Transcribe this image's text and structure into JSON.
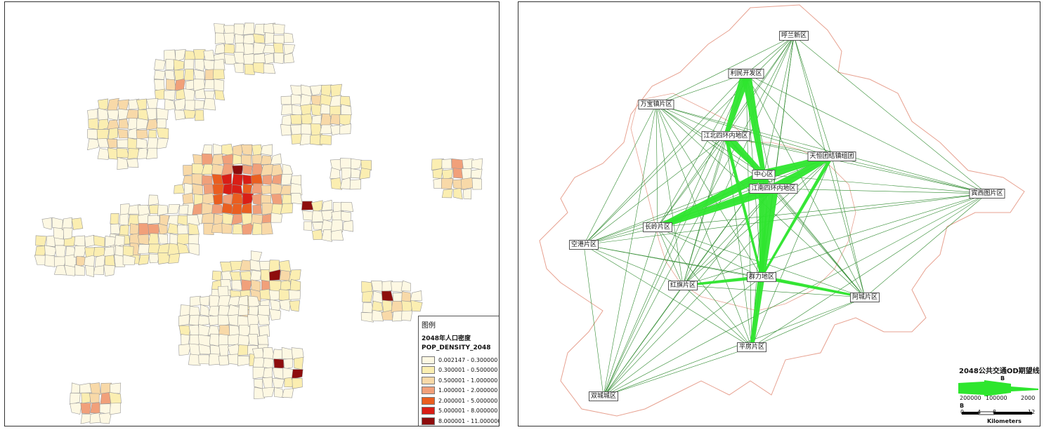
{
  "left_map": {
    "legend": {
      "title": "图例",
      "subtitle": "2048年人口密度",
      "field": "POP_DENSITY_2048",
      "classes": [
        {
          "label": "0.002147 - 0.300000",
          "color": "#fdf8e3"
        },
        {
          "label": "0.300001 - 0.500000",
          "color": "#fbeeb1"
        },
        {
          "label": "0.500001 - 1.000000",
          "color": "#f8d9a8"
        },
        {
          "label": "1.000001 - 2.000000",
          "color": "#f1a07a"
        },
        {
          "label": "2.000001 - 5.000000",
          "color": "#ea5e20"
        },
        {
          "label": "5.000001 - 8.000000",
          "color": "#d91e16"
        },
        {
          "label": "8.000001 - 11.000000",
          "color": "#8e0d0d"
        }
      ]
    }
  },
  "right_map": {
    "zones": [
      {
        "id": "hulan",
        "label": "呼兰新区"
      },
      {
        "id": "limin",
        "label": "利民开发区"
      },
      {
        "id": "wanbao",
        "label": "万宝镇片区"
      },
      {
        "id": "jiangbei",
        "label": "江北四环内地区"
      },
      {
        "id": "tianheng",
        "label": "天恒团结镇组团"
      },
      {
        "id": "zhongxin",
        "label": "中心区"
      },
      {
        "id": "jiangnan",
        "label": "江南四环内地区"
      },
      {
        "id": "binxi",
        "label": "宾西图片区"
      },
      {
        "id": "changling",
        "label": "长岭片区"
      },
      {
        "id": "konggang",
        "label": "空港片区"
      },
      {
        "id": "qunli",
        "label": "群力地区"
      },
      {
        "id": "hongqi",
        "label": "红旗片区"
      },
      {
        "id": "acheng",
        "label": "阿城片区"
      },
      {
        "id": "pingfang",
        "label": "平房片区"
      },
      {
        "id": "shuangcheng",
        "label": "双城城区"
      }
    ],
    "flows": [
      {
        "from": "limin",
        "to": "jiangbei",
        "weight": "major"
      },
      {
        "from": "limin",
        "to": "zhongxin",
        "weight": "major"
      },
      {
        "from": "jiangbei",
        "to": "zhongxin",
        "weight": "major"
      },
      {
        "from": "zhongxin",
        "to": "tianheng",
        "weight": "major"
      },
      {
        "from": "jiangnan",
        "to": "tianheng",
        "weight": "major"
      },
      {
        "from": "jiangnan",
        "to": "changling",
        "weight": "major"
      },
      {
        "from": "zhongxin",
        "to": "changling",
        "weight": "major"
      },
      {
        "from": "zhongxin",
        "to": "qunli",
        "weight": "major"
      },
      {
        "from": "jiangnan",
        "to": "pingfang",
        "weight": "major"
      },
      {
        "from": "tianheng",
        "to": "qunli",
        "weight": "medium"
      },
      {
        "from": "jiangbei",
        "to": "qunli",
        "weight": "medium"
      },
      {
        "from": "qunli",
        "to": "acheng",
        "weight": "medium"
      },
      {
        "from": "qunli",
        "to": "hongqi",
        "weight": "medium"
      }
    ],
    "legend": {
      "title": "2048公共交通OD期望线",
      "field_label": "B",
      "field_label_2": "B",
      "values": [
        "200000",
        "100000",
        "2000"
      ],
      "scale_ticks": [
        "0",
        "4",
        "8",
        "12"
      ],
      "scale_unit": "Kilometers",
      "flow_color": "#2ee62e"
    }
  }
}
